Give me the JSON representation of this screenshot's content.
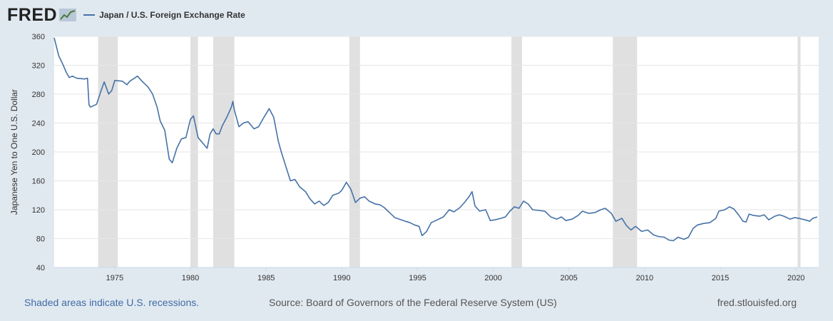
{
  "header": {
    "logo_text": "FRED",
    "legend_label": "Japan / U.S. Foreign Exchange Rate"
  },
  "footer": {
    "recessions_note": "Shaded areas indicate U.S. recessions.",
    "source": "Source: Board of Governors of the Federal Reserve System (US)",
    "site": "fred.stlouisfed.org"
  },
  "colors": {
    "background": "#e1e9f0",
    "plot_background": "#ffffff",
    "line": "#4572a7",
    "recession": "#e0e0e0"
  },
  "chart_data": {
    "type": "line",
    "title": "Japan / U.S. Foreign Exchange Rate",
    "xlabel": "",
    "ylabel": "Japanese Yen to One U.S. Dollar",
    "xlim": [
      1971.0,
      2021.5
    ],
    "ylim": [
      40,
      360
    ],
    "x_ticks": [
      1975,
      1980,
      1985,
      1990,
      1995,
      2000,
      2005,
      2010,
      2015,
      2020
    ],
    "y_ticks": [
      40,
      80,
      120,
      160,
      200,
      240,
      280,
      320,
      360
    ],
    "grid": true,
    "legend": "top-left",
    "recessions": [
      [
        1973.9,
        1975.2
      ],
      [
        1980.0,
        1980.5
      ],
      [
        1981.5,
        1982.9
      ],
      [
        1990.5,
        1991.2
      ],
      [
        2001.2,
        2001.9
      ],
      [
        2007.9,
        2009.5
      ],
      [
        2020.1,
        2020.3
      ]
    ],
    "series": [
      {
        "name": "Japan / U.S. Foreign Exchange Rate",
        "points": [
          [
            1971.0,
            358
          ],
          [
            1971.3,
            333
          ],
          [
            1971.6,
            320
          ],
          [
            1971.8,
            310
          ],
          [
            1972.0,
            303
          ],
          [
            1972.2,
            305
          ],
          [
            1972.5,
            302
          ],
          [
            1973.0,
            301
          ],
          [
            1973.2,
            302
          ],
          [
            1973.3,
            265
          ],
          [
            1973.4,
            262
          ],
          [
            1973.8,
            266
          ],
          [
            1974.1,
            285
          ],
          [
            1974.3,
            297
          ],
          [
            1974.6,
            280
          ],
          [
            1974.8,
            285
          ],
          [
            1975.0,
            299
          ],
          [
            1975.5,
            298
          ],
          [
            1975.8,
            293
          ],
          [
            1976.0,
            298
          ],
          [
            1976.5,
            305
          ],
          [
            1976.8,
            298
          ],
          [
            1977.2,
            290
          ],
          [
            1977.5,
            280
          ],
          [
            1977.8,
            262
          ],
          [
            1978.0,
            243
          ],
          [
            1978.3,
            230
          ],
          [
            1978.6,
            190
          ],
          [
            1978.8,
            185
          ],
          [
            1979.1,
            205
          ],
          [
            1979.4,
            218
          ],
          [
            1979.7,
            220
          ],
          [
            1980.0,
            245
          ],
          [
            1980.2,
            250
          ],
          [
            1980.3,
            240
          ],
          [
            1980.5,
            220
          ],
          [
            1980.7,
            215
          ],
          [
            1980.9,
            210
          ],
          [
            1981.1,
            205
          ],
          [
            1981.3,
            225
          ],
          [
            1981.5,
            232
          ],
          [
            1981.7,
            225
          ],
          [
            1981.9,
            225
          ],
          [
            1982.1,
            236
          ],
          [
            1982.4,
            248
          ],
          [
            1982.7,
            262
          ],
          [
            1982.8,
            270
          ],
          [
            1982.9,
            258
          ],
          [
            1983.2,
            235
          ],
          [
            1983.5,
            240
          ],
          [
            1983.8,
            242
          ],
          [
            1984.2,
            232
          ],
          [
            1984.5,
            235
          ],
          [
            1984.8,
            246
          ],
          [
            1985.2,
            260
          ],
          [
            1985.5,
            248
          ],
          [
            1985.8,
            215
          ],
          [
            1986.0,
            200
          ],
          [
            1986.3,
            180
          ],
          [
            1986.6,
            160
          ],
          [
            1986.9,
            162
          ],
          [
            1987.2,
            152
          ],
          [
            1987.6,
            145
          ],
          [
            1987.9,
            135
          ],
          [
            1988.2,
            128
          ],
          [
            1988.5,
            132
          ],
          [
            1988.8,
            126
          ],
          [
            1989.1,
            130
          ],
          [
            1989.4,
            140
          ],
          [
            1989.8,
            143
          ],
          [
            1990.0,
            147
          ],
          [
            1990.3,
            158
          ],
          [
            1990.6,
            148
          ],
          [
            1990.9,
            130
          ],
          [
            1991.2,
            136
          ],
          [
            1991.5,
            138
          ],
          [
            1991.8,
            132
          ],
          [
            1992.2,
            128
          ],
          [
            1992.5,
            127
          ],
          [
            1992.8,
            123
          ],
          [
            1993.2,
            115
          ],
          [
            1993.5,
            109
          ],
          [
            1993.8,
            107
          ],
          [
            1994.2,
            104
          ],
          [
            1994.5,
            102
          ],
          [
            1994.8,
            99
          ],
          [
            1995.1,
            97
          ],
          [
            1995.3,
            84
          ],
          [
            1995.6,
            90
          ],
          [
            1995.9,
            102
          ],
          [
            1996.3,
            106
          ],
          [
            1996.7,
            110
          ],
          [
            1997.1,
            120
          ],
          [
            1997.4,
            117
          ],
          [
            1997.8,
            123
          ],
          [
            1998.1,
            130
          ],
          [
            1998.4,
            138
          ],
          [
            1998.6,
            145
          ],
          [
            1998.8,
            125
          ],
          [
            1999.1,
            118
          ],
          [
            1999.5,
            120
          ],
          [
            1999.8,
            105
          ],
          [
            2000.1,
            106
          ],
          [
            2000.5,
            108
          ],
          [
            2000.8,
            110
          ],
          [
            2001.1,
            118
          ],
          [
            2001.4,
            124
          ],
          [
            2001.7,
            122
          ],
          [
            2002.0,
            132
          ],
          [
            2002.3,
            128
          ],
          [
            2002.6,
            120
          ],
          [
            2003.0,
            119
          ],
          [
            2003.4,
            118
          ],
          [
            2003.8,
            110
          ],
          [
            2004.2,
            107
          ],
          [
            2004.5,
            110
          ],
          [
            2004.8,
            105
          ],
          [
            2005.2,
            107
          ],
          [
            2005.6,
            112
          ],
          [
            2005.9,
            118
          ],
          [
            2006.3,
            115
          ],
          [
            2006.7,
            116
          ],
          [
            2007.1,
            120
          ],
          [
            2007.4,
            122
          ],
          [
            2007.8,
            115
          ],
          [
            2008.1,
            104
          ],
          [
            2008.5,
            108
          ],
          [
            2008.8,
            98
          ],
          [
            2009.1,
            92
          ],
          [
            2009.4,
            97
          ],
          [
            2009.8,
            90
          ],
          [
            2010.2,
            92
          ],
          [
            2010.6,
            85
          ],
          [
            2010.9,
            83
          ],
          [
            2011.3,
            82
          ],
          [
            2011.6,
            78
          ],
          [
            2011.9,
            77
          ],
          [
            2012.2,
            82
          ],
          [
            2012.6,
            79
          ],
          [
            2012.9,
            82
          ],
          [
            2013.2,
            94
          ],
          [
            2013.5,
            99
          ],
          [
            2013.9,
            101
          ],
          [
            2014.3,
            102
          ],
          [
            2014.7,
            108
          ],
          [
            2014.9,
            118
          ],
          [
            2015.3,
            120
          ],
          [
            2015.6,
            124
          ],
          [
            2015.9,
            121
          ],
          [
            2016.2,
            113
          ],
          [
            2016.5,
            104
          ],
          [
            2016.7,
            103
          ],
          [
            2016.9,
            114
          ],
          [
            2017.2,
            112
          ],
          [
            2017.6,
            111
          ],
          [
            2017.9,
            113
          ],
          [
            2018.2,
            106
          ],
          [
            2018.6,
            111
          ],
          [
            2018.9,
            113
          ],
          [
            2019.2,
            111
          ],
          [
            2019.6,
            107
          ],
          [
            2019.9,
            109
          ],
          [
            2020.2,
            108
          ],
          [
            2020.6,
            106
          ],
          [
            2020.9,
            104
          ],
          [
            2021.1,
            108
          ],
          [
            2021.4,
            110
          ]
        ]
      }
    ]
  }
}
